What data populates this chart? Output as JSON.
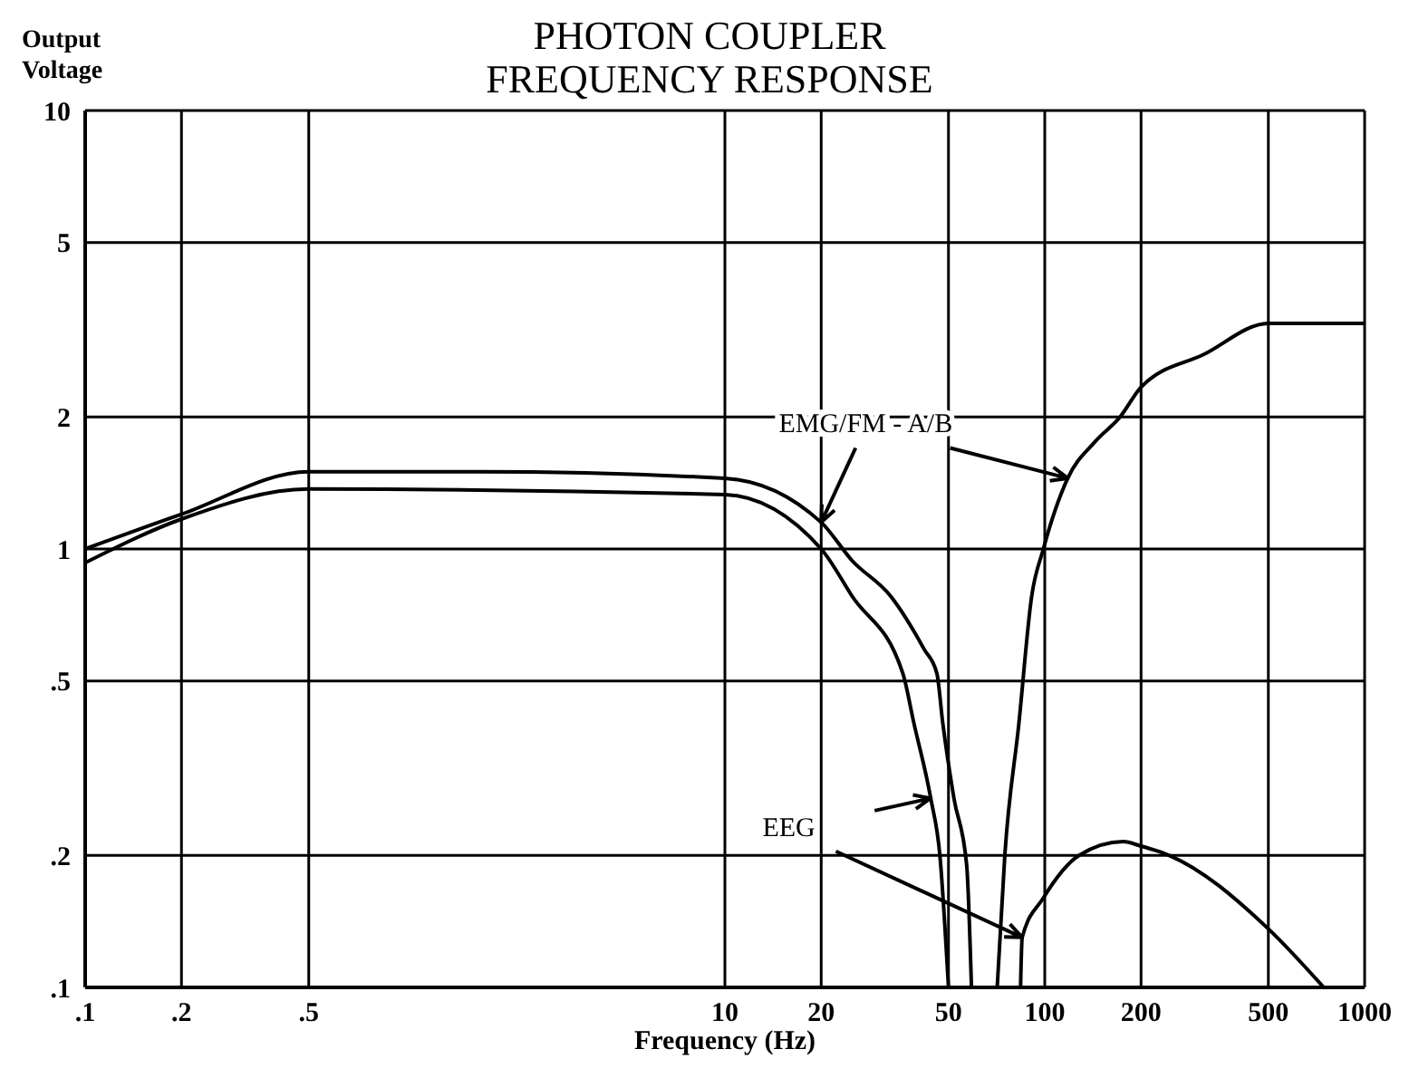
{
  "chart_data": {
    "type": "line",
    "title": "PHOTON COUPLER",
    "subtitle": "FREQUENCY RESPONSE",
    "xlabel": "Frequency (Hz)",
    "ylabel": "Output Voltage",
    "log": "xy",
    "grid": true,
    "marker": "none",
    "line_style": "solid",
    "xlim": [
      0.1,
      1000
    ],
    "xticks": [
      {
        "value": 0.1,
        "label": ".1"
      },
      {
        "value": 0.2,
        "label": ".2"
      },
      {
        "value": 0.5,
        "label": ".5"
      },
      10,
      20,
      50,
      100,
      200,
      500,
      1000
    ],
    "ylim": [
      0.1,
      10
    ],
    "yticks": [
      {
        "value": 0.1,
        "label": ".1"
      },
      {
        "value": 0.2,
        "label": ".2"
      },
      {
        "value": 0.5,
        "label": ".5"
      },
      1,
      2,
      5,
      10
    ],
    "series": [
      {
        "name": "EMG/FM - A/B",
        "color": "#000000",
        "x": [
          0.1,
          0.2,
          0.5,
          1.7,
          10,
          20,
          25,
          33,
          42,
          46,
          48,
          52,
          57,
          59,
          65,
          71,
          75,
          83,
          91,
          99,
          118,
          144,
          172,
          200,
          315,
          500,
          1000
        ],
        "values": [
          1.0,
          1.2,
          1.5,
          1.5,
          1.45,
          1.15,
          0.94,
          0.78,
          0.59,
          0.52,
          0.4,
          0.27,
          0.19,
          0.1,
          null,
          0.1,
          0.2,
          0.4,
          0.78,
          1.0,
          1.45,
          1.76,
          2.0,
          2.34,
          2.78,
          3.27,
          3.27
        ]
      },
      {
        "name": "EEG",
        "color": "#000000",
        "x": [
          0.1,
          0.2,
          0.5,
          10,
          20,
          25,
          36,
          39,
          44,
          47,
          50,
          65,
          84,
          85,
          99,
          128,
          176,
          200,
          245,
          500,
          745
        ],
        "values": [
          0.93,
          1.17,
          1.37,
          1.33,
          1.0,
          0.78,
          0.52,
          0.4,
          0.27,
          0.2,
          0.1,
          null,
          0.1,
          0.13,
          0.16,
          0.2,
          0.215,
          0.21,
          0.2,
          0.136,
          0.1
        ]
      }
    ]
  }
}
